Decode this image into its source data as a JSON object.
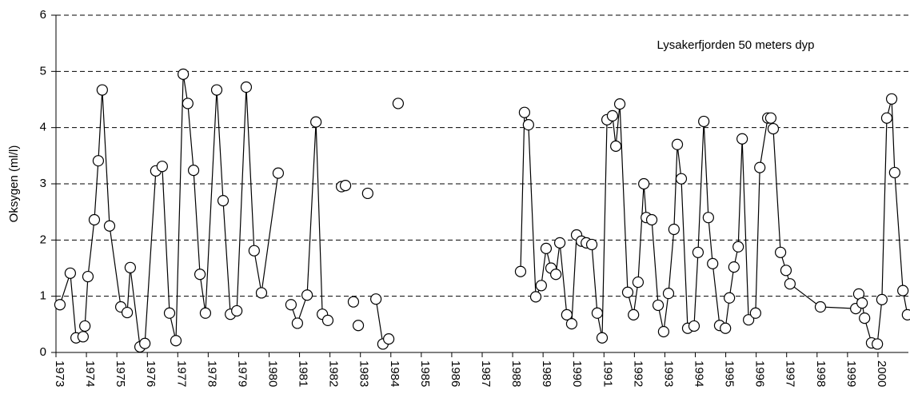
{
  "chart_data": {
    "type": "line",
    "annotation": "Lysakerfjorden 50 meters dyp",
    "y_label": "Oksygen (ml/l)",
    "xlim": [
      1973,
      2001
    ],
    "xticks": [
      1973,
      1974,
      1975,
      1976,
      1977,
      1978,
      1979,
      1980,
      1981,
      1982,
      1983,
      1984,
      1985,
      1986,
      1987,
      1988,
      1989,
      1990,
      1991,
      1992,
      1993,
      1994,
      1995,
      1996,
      1997,
      1998,
      1999,
      2000
    ],
    "ylim": [
      0,
      6
    ],
    "yticks": [
      0,
      1,
      2,
      3,
      4,
      5,
      6
    ],
    "grid": true,
    "series": [
      {
        "color": "#000000",
        "x": [
          1973.13,
          1973.47,
          1973.66,
          1973.89,
          1973.95,
          1974.05,
          1974.26,
          1974.39,
          1974.52,
          1974.76,
          1975.13,
          1975.34,
          1975.44,
          1975.76,
          1975.92,
          1976.28,
          1976.49,
          1976.73,
          1976.94,
          1977.18,
          1977.33,
          1977.52,
          1977.73,
          1977.91,
          1978.28,
          1978.49,
          1978.73,
          1978.94,
          1979.25,
          1979.51,
          1979.75,
          1980.3,
          null,
          1980.72,
          1980.93,
          1981.25,
          1981.54,
          1981.75,
          1981.93,
          null,
          1982.38,
          null,
          1982.51,
          null,
          1982.77,
          null,
          1982.93,
          null,
          1983.24,
          null,
          1983.51,
          1983.74,
          1983.93,
          null,
          1984.24,
          null,
          1988.26,
          1988.39,
          1988.52,
          1988.76,
          1988.94,
          1989.1,
          1989.26,
          1989.42,
          1989.55,
          1989.78,
          1989.94,
          1990.1,
          1990.26,
          1990.42,
          1990.6,
          1990.78,
          1990.94,
          1991.1,
          1991.28,
          1991.39,
          1991.52,
          1991.78,
          1991.97,
          1992.12,
          1992.31,
          1992.39,
          1992.57,
          1992.78,
          1992.96,
          1993.12,
          1993.3,
          1993.41,
          1993.54,
          1993.75,
          1993.96,
          1994.09,
          1994.28,
          1994.43,
          1994.57,
          1994.8,
          1994.99,
          1995.12,
          1995.27,
          1995.41,
          1995.54,
          1995.75,
          1995.98,
          1996.12,
          1996.38,
          1996.48,
          1996.56,
          1996.8,
          1996.98,
          1997.11,
          1998.11,
          1999.27,
          1999.37,
          1999.48,
          1999.56,
          1999.79,
          1999.98,
          2000.13,
          2000.29,
          2000.45,
          2000.55,
          2000.82,
          2000.97
        ],
        "values": [
          0.85,
          1.41,
          0.26,
          0.28,
          0.47,
          1.35,
          2.36,
          3.41,
          4.67,
          2.25,
          0.81,
          0.71,
          1.51,
          0.1,
          0.16,
          3.23,
          3.31,
          0.7,
          0.21,
          4.95,
          4.43,
          3.24,
          1.39,
          0.7,
          4.67,
          2.7,
          0.68,
          0.74,
          4.72,
          1.81,
          1.06,
          3.19,
          null,
          0.85,
          0.52,
          1.02,
          4.1,
          0.68,
          0.57,
          null,
          2.95,
          null,
          2.97,
          null,
          0.9,
          null,
          0.48,
          null,
          2.83,
          null,
          0.95,
          0.15,
          0.24,
          null,
          4.43,
          null,
          1.44,
          4.27,
          4.05,
          0.99,
          1.19,
          1.85,
          1.5,
          1.39,
          1.95,
          0.67,
          0.51,
          2.09,
          1.98,
          1.95,
          1.92,
          0.7,
          0.26,
          4.14,
          4.21,
          3.67,
          4.42,
          1.07,
          0.67,
          1.25,
          3.0,
          2.4,
          2.36,
          0.84,
          0.37,
          1.05,
          2.19,
          3.7,
          3.09,
          0.43,
          0.47,
          1.78,
          4.11,
          2.4,
          1.58,
          0.48,
          0.43,
          0.97,
          1.52,
          1.88,
          3.8,
          0.58,
          0.7,
          3.29,
          4.17,
          4.17,
          3.98,
          1.78,
          1.46,
          1.22,
          0.81,
          0.78,
          1.04,
          0.88,
          0.61,
          0.17,
          0.15,
          0.94,
          4.17,
          4.51,
          3.2,
          1.1,
          0.67
        ]
      }
    ]
  }
}
